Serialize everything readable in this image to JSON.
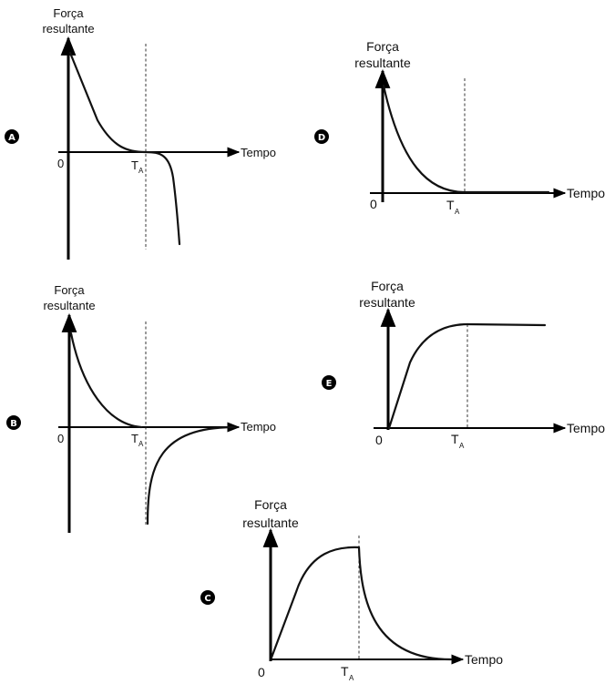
{
  "labels": {
    "y_line1": "Força",
    "y_line2": "resultante",
    "x_label": "Tempo",
    "origin": "0",
    "t_main": "T",
    "t_sub": "A"
  },
  "options": [
    "A",
    "B",
    "C",
    "D",
    "E"
  ],
  "colors": {
    "ink": "#111111",
    "badge": "#000000"
  }
}
